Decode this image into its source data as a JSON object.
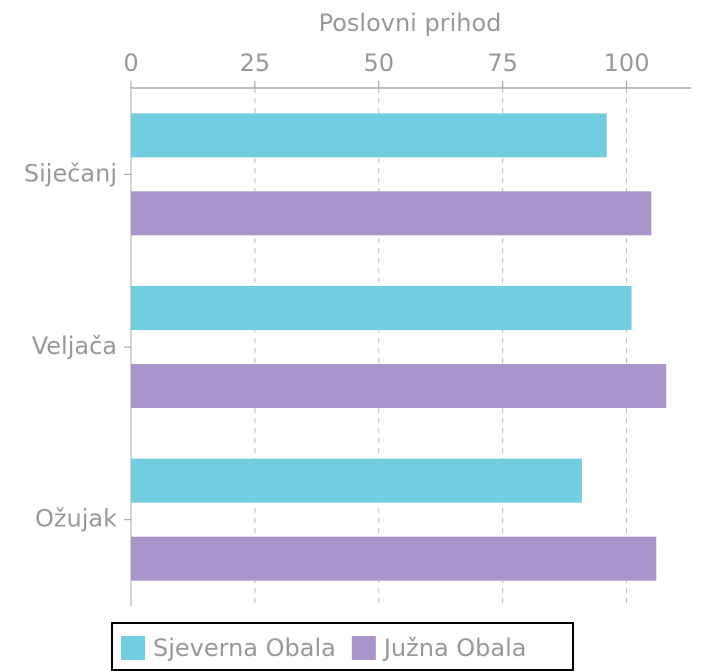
{
  "chart_data": {
    "type": "bar",
    "orientation": "horizontal",
    "x_label": "Poslovni prihod",
    "categories": [
      "Siječanj",
      "Veljača",
      "Ožujak"
    ],
    "series": [
      {
        "name": "Sjeverna Obala",
        "color": "#72cde0",
        "values": [
          96,
          101,
          91
        ]
      },
      {
        "name": "Južna Obala",
        "color": "#ab94c9",
        "values": [
          105,
          108,
          106
        ]
      }
    ],
    "xlim": [
      0,
      113
    ],
    "xticks": [
      0,
      25,
      50,
      75,
      100
    ],
    "grid": true,
    "legend": "bottom"
  }
}
